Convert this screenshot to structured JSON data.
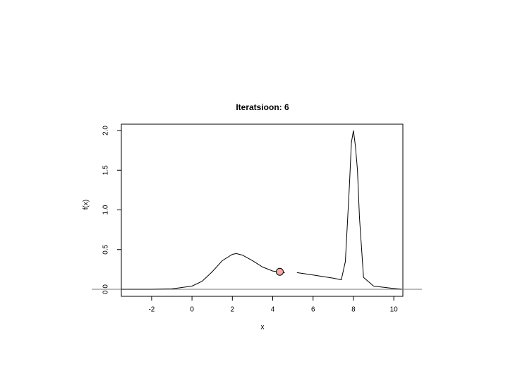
{
  "chart_data": {
    "type": "line",
    "title": "Iteratsioon: 6",
    "x_label": "x",
    "y_label": "f(x)",
    "x": [
      -3.5,
      -2,
      -1,
      0,
      0.5,
      1,
      1.5,
      2,
      2.2,
      2.5,
      3,
      3.5,
      4,
      4.6,
      4.8,
      5.2,
      6,
      7,
      7.4,
      7.6,
      7.8,
      7.9,
      8,
      8.1,
      8.2,
      8.3,
      8.5,
      9,
      10,
      10.4
    ],
    "values": [
      0,
      0,
      0.005,
      0.04,
      0.1,
      0.22,
      0.36,
      0.44,
      0.45,
      0.43,
      0.36,
      0.28,
      0.23,
      0.21,
      null,
      0.21,
      0.18,
      0.14,
      0.12,
      0.35,
      1.3,
      1.85,
      2.0,
      1.8,
      1.5,
      0.9,
      0.15,
      0.04,
      0.01,
      0
    ],
    "color": "#000000",
    "point": {
      "x": 4.35,
      "y": 0.22,
      "color": "#f4a9a9"
    },
    "hline": 0,
    "xlim": [
      -3.5,
      10.45
    ],
    "ylim": [
      -0.089,
      2.08
    ],
    "xticks": [
      -2,
      0,
      2,
      4,
      6,
      8,
      10
    ],
    "yticks": [
      {
        "value": 0,
        "label": "0.0"
      },
      {
        "value": 0.5,
        "label": "0.5"
      },
      {
        "value": 1,
        "label": "1.0"
      },
      {
        "value": 1.5,
        "label": "1.5"
      },
      {
        "value": 2,
        "label": "2.0"
      }
    ]
  }
}
